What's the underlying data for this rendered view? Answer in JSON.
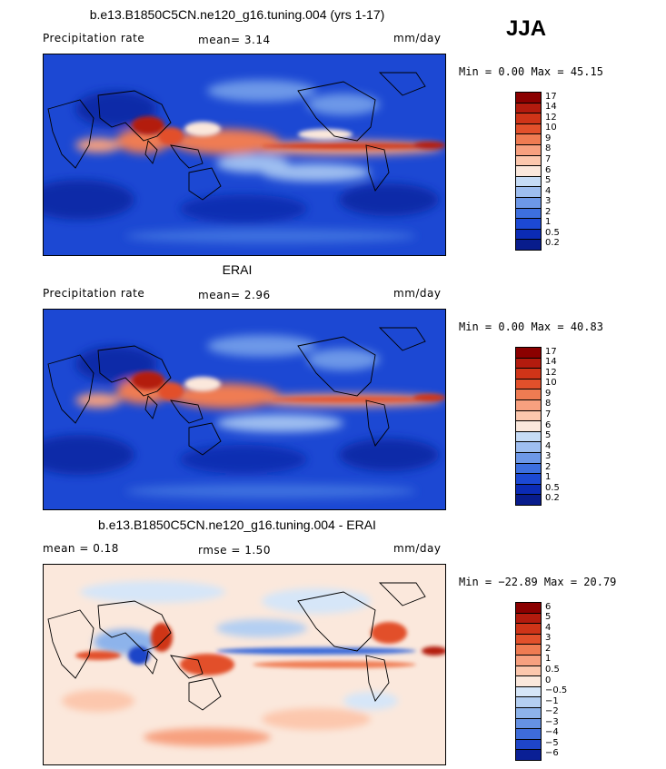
{
  "season": "JJA",
  "panels": [
    {
      "title": "b.e13.B1850C5CN.ne120_g16.tuning.004 (yrs 1-17)",
      "left_label": "Precipitation rate",
      "mid_label": "mean=   3.14",
      "units": "mm/day",
      "minmax": "Min =    0.00 Max =  45.15",
      "scheme": "seq",
      "levels": [
        "17",
        "14",
        "12",
        "10",
        "9",
        "8",
        "7",
        "6",
        "5",
        "4",
        "3",
        "2",
        "1",
        "0.5",
        "0.2"
      ]
    },
    {
      "title": "ERAI",
      "left_label": "Precipitation rate",
      "mid_label": "mean=   2.96",
      "units": "mm/day",
      "minmax": "Min =    0.00 Max =  40.83",
      "scheme": "seq",
      "levels": [
        "17",
        "14",
        "12",
        "10",
        "9",
        "8",
        "7",
        "6",
        "5",
        "4",
        "3",
        "2",
        "1",
        "0.5",
        "0.2"
      ]
    },
    {
      "title": "b.e13.B1850C5CN.ne120_g16.tuning.004 - ERAI",
      "left_label": "mean =   0.18",
      "mid_label": "rmse =   1.50",
      "units": "mm/day",
      "minmax": "Min = −22.89 Max =  20.79",
      "scheme": "div",
      "levels": [
        "6",
        "5",
        "4",
        "3",
        "2",
        "1",
        "0.5",
        "0",
        "−0.5",
        "−1",
        "−2",
        "−3",
        "−4",
        "−5",
        "−6"
      ]
    }
  ],
  "colors": {
    "seq": [
      "#8b0000",
      "#b31b0e",
      "#cf3418",
      "#e2502b",
      "#ef7b52",
      "#f7a07f",
      "#fcc7ad",
      "#fbe8dc",
      "#c6dcf6",
      "#9ebef0",
      "#6d98e8",
      "#3d6fdf",
      "#1c49d4",
      "#0b2bb5",
      "#081c8c"
    ],
    "div": [
      "#8b0000",
      "#b31b0e",
      "#cf3418",
      "#e2502b",
      "#ef7b52",
      "#f7a07f",
      "#fcc7ad",
      "#fbe8dc",
      "#d6e6f8",
      "#b4cff2",
      "#8db3eb",
      "#6591e3",
      "#3e6cd9",
      "#1e45c8",
      "#0a1f95"
    ]
  }
}
